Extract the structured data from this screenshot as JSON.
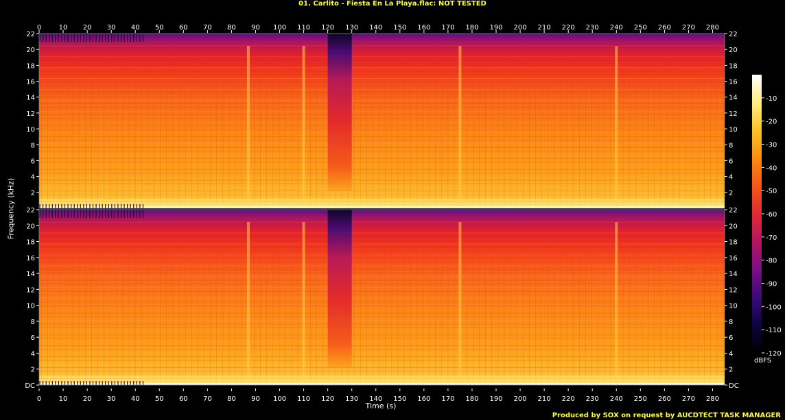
{
  "title": "01. Carlito - Fiesta En La Playa.flac: NOT TESTED",
  "footer": "Produced by SOX on request by AUCDTECT TASK MANAGER",
  "chart_data": {
    "type": "heatmap",
    "title": "01. Carlito - Fiesta En La Playa.flac: NOT TESTED",
    "xlabel": "Time (s)",
    "ylabel": "Frequency (kHz)",
    "xlim": [
      0,
      285
    ],
    "ylim": [
      0,
      22
    ],
    "x_ticks": [
      "0",
      "10",
      "20",
      "30",
      "40",
      "50",
      "60",
      "70",
      "80",
      "90",
      "100",
      "110",
      "120",
      "130",
      "140",
      "150",
      "160",
      "170",
      "180",
      "190",
      "200",
      "210",
      "220",
      "230",
      "240",
      "250",
      "260",
      "270",
      "280"
    ],
    "y_ticks_bottom_channel": [
      "DC",
      "2",
      "4",
      "6",
      "8",
      "10",
      "12",
      "14",
      "16",
      "18",
      "20",
      "22"
    ],
    "y_ticks_top_channel": [
      "2",
      "4",
      "6",
      "8",
      "10",
      "12",
      "14",
      "16",
      "18",
      "20",
      "22"
    ],
    "channels": 2,
    "colorbar": {
      "label": "dBFS",
      "ticks": [
        "-10",
        "-20",
        "-30",
        "-40",
        "-50",
        "-60",
        "-70",
        "-80",
        "-90",
        "-100",
        "-110",
        "-120"
      ],
      "range": [
        -120,
        0
      ],
      "colors": [
        "#000000",
        "#0d0440",
        "#3a0a7a",
        "#7a0f84",
        "#b51560",
        "#e02a30",
        "#f5561a",
        "#fb8c10",
        "#fdc128",
        "#ffef80",
        "#ffffff"
      ]
    },
    "features": {
      "quiet_gap_seconds": [
        120,
        130
      ],
      "intro_marks_seconds": [
        0,
        44
      ],
      "spikes_seconds": [
        87,
        110,
        175,
        240
      ]
    }
  }
}
